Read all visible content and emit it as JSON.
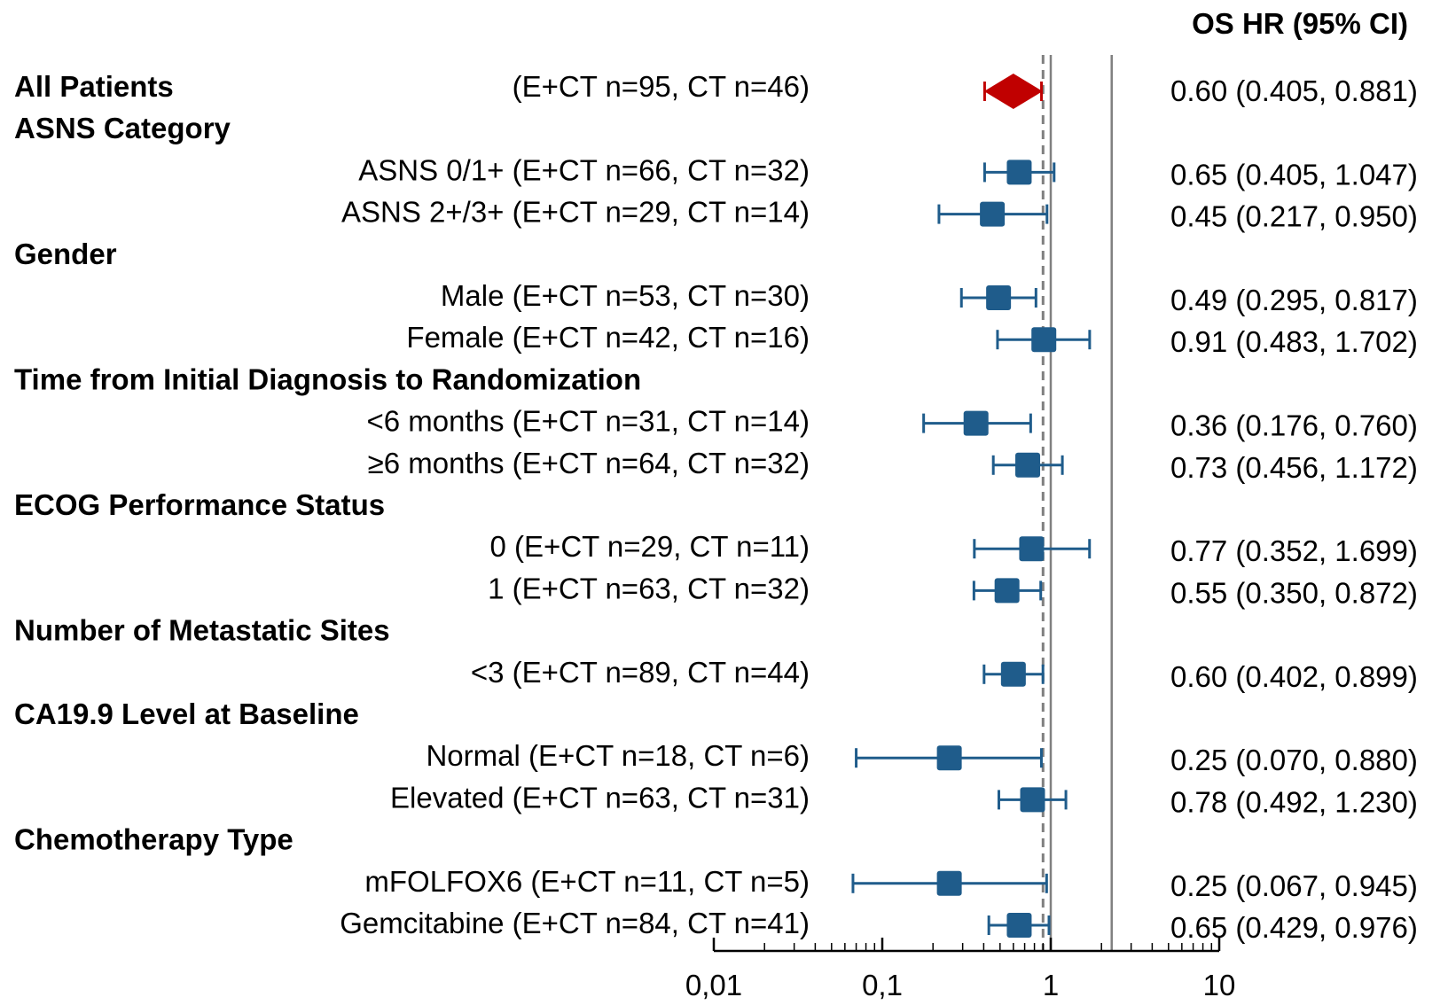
{
  "chart_data": {
    "type": "forest",
    "column_header": "OS HR (95% CI)",
    "x_axis": {
      "scale": "log",
      "range": [
        0.01,
        10
      ],
      "tick_labels": [
        "0,01",
        "0,1",
        "1",
        "10"
      ],
      "tick_values": [
        0.01,
        0.1,
        1,
        10
      ]
    },
    "reference_lines": [
      {
        "value": 0.9,
        "style": "dashed",
        "color": "#808080"
      },
      {
        "value": 1.0,
        "style": "solid",
        "color": "#808080"
      },
      {
        "value": 2.3,
        "style": "solid",
        "color": "#808080"
      }
    ],
    "colors": {
      "overall": "#C00000",
      "subgroup": "#1F5C8B"
    },
    "rows": [
      {
        "type": "overall",
        "label": "All Patients",
        "n_text": "(E+CT n=95, CT n=46)",
        "hr": 0.6,
        "lo": 0.405,
        "hi": 0.881,
        "value_text": "0.60 (0.405, 0.881)"
      },
      {
        "type": "header",
        "label": "ASNS Category"
      },
      {
        "type": "sub",
        "label": "ASNS 0/1+ (E+CT n=66, CT n=32)",
        "hr": 0.65,
        "lo": 0.405,
        "hi": 1.047,
        "value_text": "0.65 (0.405, 1.047)"
      },
      {
        "type": "sub",
        "label": "ASNS 2+/3+ (E+CT n=29, CT n=14)",
        "hr": 0.45,
        "lo": 0.217,
        "hi": 0.95,
        "value_text": "0.45 (0.217, 0.950)"
      },
      {
        "type": "header",
        "label": "Gender"
      },
      {
        "type": "sub",
        "label": "Male (E+CT n=53, CT n=30)",
        "hr": 0.49,
        "lo": 0.295,
        "hi": 0.817,
        "value_text": "0.49 (0.295, 0.817)"
      },
      {
        "type": "sub",
        "label": "Female (E+CT n=42, CT n=16)",
        "hr": 0.91,
        "lo": 0.483,
        "hi": 1.702,
        "value_text": "0.91 (0.483, 1.702)"
      },
      {
        "type": "header",
        "label": "Time from Initial Diagnosis to Randomization"
      },
      {
        "type": "sub",
        "label": "<6 months (E+CT n=31, CT n=14)",
        "hr": 0.36,
        "lo": 0.176,
        "hi": 0.76,
        "value_text": "0.36 (0.176, 0.760)"
      },
      {
        "type": "sub",
        "label": "≥6 months (E+CT n=64, CT n=32)",
        "hr": 0.73,
        "lo": 0.456,
        "hi": 1.172,
        "value_text": "0.73 (0.456, 1.172)"
      },
      {
        "type": "header",
        "label": "ECOG Performance Status"
      },
      {
        "type": "sub",
        "label": "0 (E+CT n=29, CT n=11)",
        "hr": 0.77,
        "lo": 0.352,
        "hi": 1.699,
        "value_text": "0.77 (0.352, 1.699)"
      },
      {
        "type": "sub",
        "label": "1 (E+CT n=63, CT n=32)",
        "hr": 0.55,
        "lo": 0.35,
        "hi": 0.872,
        "value_text": "0.55 (0.350, 0.872)"
      },
      {
        "type": "header",
        "label": "Number of Metastatic Sites"
      },
      {
        "type": "sub",
        "label": "<3 (E+CT n=89, CT n=44)",
        "hr": 0.6,
        "lo": 0.402,
        "hi": 0.899,
        "value_text": "0.60 (0.402, 0.899)"
      },
      {
        "type": "header",
        "label": "CA19.9 Level at Baseline"
      },
      {
        "type": "sub",
        "label": "Normal (E+CT n=18, CT n=6)",
        "hr": 0.25,
        "lo": 0.07,
        "hi": 0.88,
        "value_text": "0.25 (0.070, 0.880)"
      },
      {
        "type": "sub",
        "label": "Elevated (E+CT n=63, CT n=31)",
        "hr": 0.78,
        "lo": 0.492,
        "hi": 1.23,
        "value_text": "0.78 (0.492, 1.230)"
      },
      {
        "type": "header",
        "label": "Chemotherapy Type"
      },
      {
        "type": "sub",
        "label": "mFOLFOX6 (E+CT n=11, CT n=5)",
        "hr": 0.25,
        "lo": 0.067,
        "hi": 0.945,
        "value_text": "0.25 (0.067, 0.945)"
      },
      {
        "type": "sub",
        "label": "Gemcitabine (E+CT n=84, CT n=41)",
        "hr": 0.65,
        "lo": 0.429,
        "hi": 0.976,
        "value_text": "0.65 (0.429, 0.976)"
      }
    ]
  }
}
